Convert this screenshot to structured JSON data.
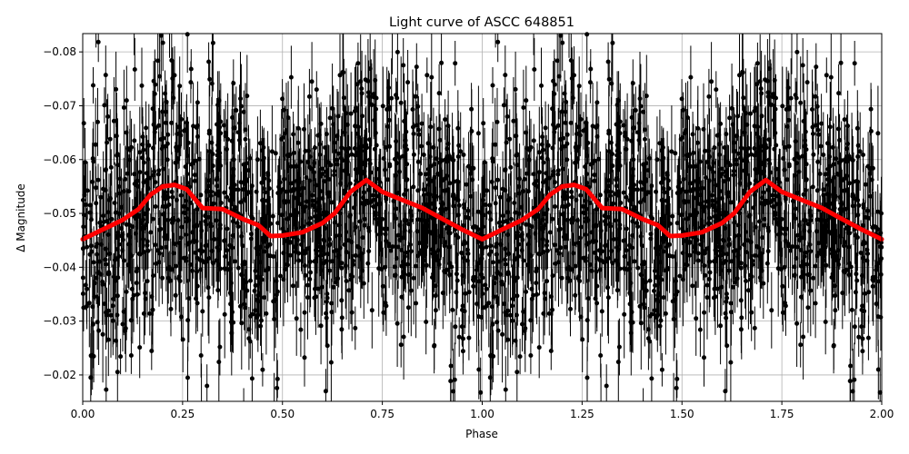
{
  "chart_data": {
    "type": "scatter",
    "title": "Light curve of ASCC 648851",
    "xlabel": "Phase",
    "ylabel": "Δ Magnitude",
    "xlim": [
      0.0,
      2.0
    ],
    "ylim": [
      -0.0151,
      -0.0834
    ],
    "y_inverted": true,
    "grid": true,
    "legend": null,
    "x_ticks": [
      "0.00",
      "0.25",
      "0.50",
      "0.75",
      "1.00",
      "1.25",
      "1.50",
      "1.75",
      "2.00"
    ],
    "x_tick_values": [
      0.0,
      0.25,
      0.5,
      0.75,
      1.0,
      1.25,
      1.5,
      1.75,
      2.0
    ],
    "y_ticks": [
      "−0.08",
      "−0.07",
      "−0.06",
      "−0.05",
      "−0.04",
      "−0.03",
      "−0.02"
    ],
    "y_tick_values": [
      -0.08,
      -0.07,
      -0.06,
      -0.05,
      -0.04,
      -0.03,
      -0.02
    ],
    "series": [
      {
        "name": "observations",
        "kind": "errorbar-scatter",
        "color": "#000000",
        "marker": "circle",
        "description": "Dense phase-folded photometry with error bars, roughly centred on the binned curve with scatter spanning about -0.083 to -0.015",
        "center_approx": -0.05,
        "spread_approx": 0.012
      },
      {
        "name": "binned curve",
        "kind": "line",
        "color": "#ff0000",
        "linewidth": 4,
        "x": [
          0.0,
          0.05,
          0.1,
          0.14,
          0.17,
          0.2,
          0.23,
          0.26,
          0.3,
          0.35,
          0.4,
          0.44,
          0.47,
          0.5,
          0.55,
          0.6,
          0.63,
          0.67,
          0.71,
          0.75,
          0.8,
          0.85,
          0.9,
          0.95,
          1.0,
          1.05,
          1.1,
          1.14,
          1.17,
          1.2,
          1.23,
          1.26,
          1.3,
          1.35,
          1.4,
          1.44,
          1.47,
          1.5,
          1.55,
          1.6,
          1.63,
          1.67,
          1.71,
          1.75,
          1.8,
          1.85,
          1.9,
          1.95,
          2.0
        ],
        "y": [
          -0.0452,
          -0.047,
          -0.0488,
          -0.0508,
          -0.0535,
          -0.055,
          -0.0553,
          -0.0545,
          -0.051,
          -0.0508,
          -0.049,
          -0.0478,
          -0.0458,
          -0.0459,
          -0.0465,
          -0.0482,
          -0.05,
          -0.054,
          -0.0562,
          -0.054,
          -0.0525,
          -0.051,
          -0.049,
          -0.047,
          -0.0452,
          -0.047,
          -0.0488,
          -0.0508,
          -0.0535,
          -0.055,
          -0.0553,
          -0.0545,
          -0.051,
          -0.0508,
          -0.049,
          -0.0478,
          -0.0458,
          -0.0459,
          -0.0465,
          -0.0482,
          -0.05,
          -0.054,
          -0.0562,
          -0.054,
          -0.0525,
          -0.051,
          -0.049,
          -0.047,
          -0.0452
        ]
      }
    ]
  }
}
